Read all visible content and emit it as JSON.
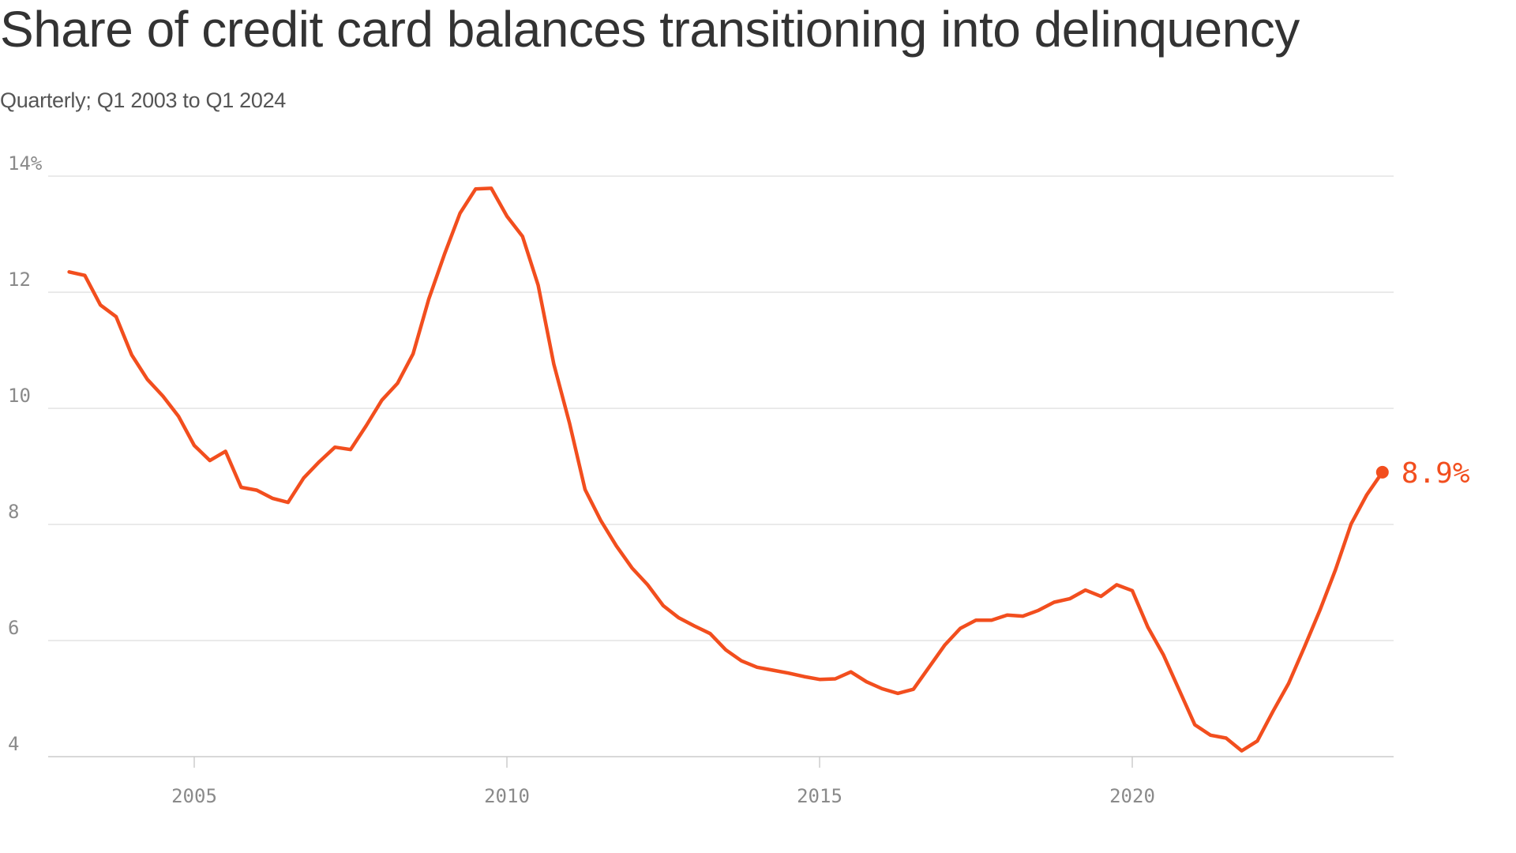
{
  "title": "Share of credit card balances transitioning into delinquency",
  "subtitle": "Quarterly; Q1 2003 to Q1 2024",
  "colors": {
    "line": "#f24e1e",
    "grid": "#dddddd",
    "axis": "#cccccc",
    "title": "#333333",
    "tick_label": "#8a8a8a"
  },
  "chart_data": {
    "type": "line",
    "title": "Share of credit card balances transitioning into delinquency",
    "subtitle": "Quarterly; Q1 2003 to Q1 2024",
    "xlabel": "",
    "ylabel": "",
    "ylim": [
      4,
      14
    ],
    "xlim": [
      2002.75,
      2024.25
    ],
    "y_ticks": [
      4,
      6,
      8,
      10,
      12,
      14
    ],
    "y_tick_labels": [
      "4",
      "6",
      "8",
      "10",
      "12",
      "14%"
    ],
    "x_ticks": [
      2005,
      2010,
      2015,
      2020
    ],
    "x_tick_labels": [
      "2005",
      "2010",
      "2015",
      "2020"
    ],
    "grid": "horizontal",
    "legend": "none",
    "end_label": "8.9%",
    "series": [
      {
        "x": [
          "Q1 2003",
          "Q2 2003",
          "Q3 2003",
          "Q4 2003",
          "Q1 2004",
          "Q2 2004",
          "Q3 2004",
          "Q4 2004",
          "Q1 2005",
          "Q2 2005",
          "Q3 2005",
          "Q4 2005",
          "Q1 2006",
          "Q2 2006",
          "Q3 2006",
          "Q4 2006",
          "Q1 2007",
          "Q2 2007",
          "Q3 2007",
          "Q4 2007",
          "Q1 2008",
          "Q2 2008",
          "Q3 2008",
          "Q4 2008",
          "Q1 2009",
          "Q2 2009",
          "Q3 2009",
          "Q4 2009",
          "Q1 2010",
          "Q2 2010",
          "Q3 2010",
          "Q4 2010",
          "Q1 2011",
          "Q2 2011",
          "Q3 2011",
          "Q4 2011",
          "Q1 2012",
          "Q2 2012",
          "Q3 2012",
          "Q4 2012",
          "Q1 2013",
          "Q2 2013",
          "Q3 2013",
          "Q4 2013",
          "Q1 2014",
          "Q2 2014",
          "Q3 2014",
          "Q4 2014",
          "Q1 2015",
          "Q2 2015",
          "Q3 2015",
          "Q4 2015",
          "Q1 2016",
          "Q2 2016",
          "Q3 2016",
          "Q4 2016",
          "Q1 2017",
          "Q2 2017",
          "Q3 2017",
          "Q4 2017",
          "Q1 2018",
          "Q2 2018",
          "Q3 2018",
          "Q4 2018",
          "Q1 2019",
          "Q2 2019",
          "Q3 2019",
          "Q4 2019",
          "Q1 2020",
          "Q2 2020",
          "Q3 2020",
          "Q4 2020",
          "Q1 2021",
          "Q2 2021",
          "Q3 2021",
          "Q4 2021",
          "Q1 2022",
          "Q2 2022",
          "Q3 2022",
          "Q4 2022",
          "Q1 2023",
          "Q2 2023",
          "Q3 2023",
          "Q4 2023",
          "Q1 2024"
        ],
        "values": [
          12.35,
          12.29,
          11.78,
          11.58,
          10.92,
          10.5,
          10.21,
          9.86,
          9.36,
          9.1,
          9.26,
          8.64,
          8.59,
          8.45,
          8.38,
          8.8,
          9.08,
          9.33,
          9.29,
          9.7,
          10.14,
          10.43,
          10.94,
          11.88,
          12.65,
          13.36,
          13.78,
          13.79,
          13.31,
          12.96,
          12.12,
          10.76,
          9.75,
          8.6,
          8.07,
          7.63,
          7.25,
          6.96,
          6.6,
          6.39,
          6.25,
          6.12,
          5.84,
          5.65,
          5.54,
          5.49,
          5.44,
          5.38,
          5.33,
          5.34,
          5.46,
          5.29,
          5.17,
          5.09,
          5.16,
          5.54,
          5.92,
          6.21,
          6.35,
          6.35,
          6.44,
          6.42,
          6.52,
          6.66,
          6.72,
          6.87,
          6.76,
          6.96,
          6.86,
          6.23,
          5.75,
          5.15,
          4.55,
          4.37,
          4.32,
          4.1,
          4.27,
          4.78,
          5.26,
          5.88,
          6.52,
          7.22,
          8.01,
          8.51,
          8.9
        ]
      }
    ]
  }
}
